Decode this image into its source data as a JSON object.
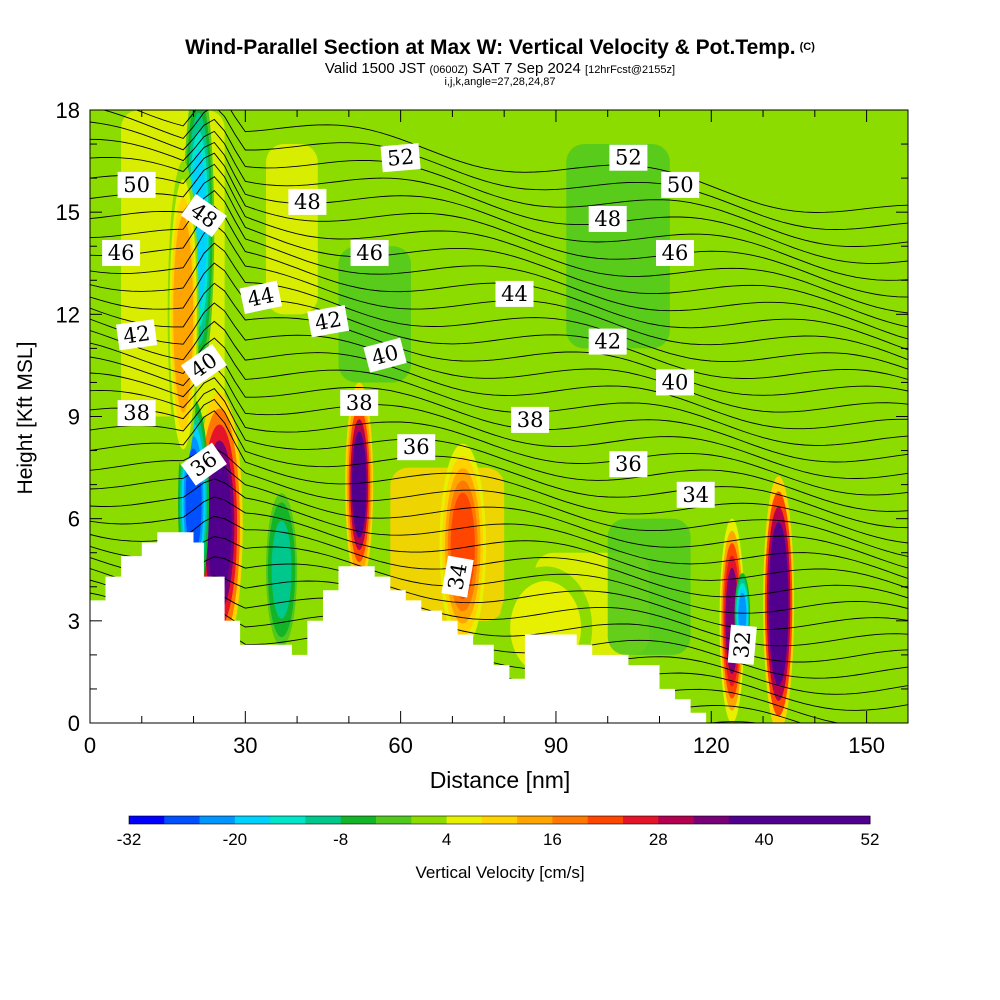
{
  "title": "Wind-Parallel Section at Max W: Vertical Velocity & Pot.Temp.",
  "copyright": "(C)",
  "subtitle": {
    "valid": "Valid 1500 JST",
    "utc": "(0600Z)",
    "date": "SAT 7 Sep 2024",
    "forecast": "[12hrFcst@2155z]"
  },
  "subtitle2": "i,j,k,angle=27,28,24,87",
  "colors": {
    "scale": [
      "#0000ff",
      "#0050ff",
      "#0096ff",
      "#00d2ff",
      "#00e6c8",
      "#00c88c",
      "#14b428",
      "#50c81e",
      "#8cdc00",
      "#e6f000",
      "#ffd200",
      "#ffa500",
      "#ff7800",
      "#ff4600",
      "#e61428",
      "#b40050",
      "#780078",
      "#50008c"
    ],
    "background": "#ffffff",
    "terrain": "#ffffff"
  },
  "chart_data": {
    "type": "heatmap",
    "xlabel": "Distance [nm]",
    "ylabel": "Height [Kft MSL]",
    "xlim": [
      0,
      158
    ],
    "ylim": [
      0,
      18
    ],
    "xticks": [
      "0",
      "30",
      "60",
      "90",
      "120",
      "150"
    ],
    "yticks": [
      "0",
      "3",
      "6",
      "9",
      "12",
      "15",
      "18"
    ],
    "colorbar": {
      "label": "Vertical Velocity [cm/s]",
      "min": -32,
      "max": 52,
      "step": 4,
      "tick_labels": [
        "-32",
        "-20",
        "-8",
        "4",
        "16",
        "28",
        "40",
        "52"
      ]
    },
    "terrain_kft": [
      {
        "x": 0,
        "h": 3.6
      },
      {
        "x": 3,
        "h": 3.6
      },
      {
        "x": 3,
        "h": 4.3
      },
      {
        "x": 6,
        "h": 4.3
      },
      {
        "x": 6,
        "h": 4.9
      },
      {
        "x": 10,
        "h": 4.9
      },
      {
        "x": 10,
        "h": 5.3
      },
      {
        "x": 13,
        "h": 5.3
      },
      {
        "x": 13,
        "h": 5.6
      },
      {
        "x": 20,
        "h": 5.6
      },
      {
        "x": 20,
        "h": 5.3
      },
      {
        "x": 22,
        "h": 5.3
      },
      {
        "x": 22,
        "h": 4.3
      },
      {
        "x": 26,
        "h": 4.3
      },
      {
        "x": 26,
        "h": 3.0
      },
      {
        "x": 29,
        "h": 3.0
      },
      {
        "x": 29,
        "h": 2.3
      },
      {
        "x": 39,
        "h": 2.3
      },
      {
        "x": 39,
        "h": 2.0
      },
      {
        "x": 42,
        "h": 2.0
      },
      {
        "x": 42,
        "h": 3.0
      },
      {
        "x": 45,
        "h": 3.0
      },
      {
        "x": 45,
        "h": 3.9
      },
      {
        "x": 48,
        "h": 3.9
      },
      {
        "x": 48,
        "h": 4.6
      },
      {
        "x": 55,
        "h": 4.6
      },
      {
        "x": 55,
        "h": 4.3
      },
      {
        "x": 58,
        "h": 4.3
      },
      {
        "x": 58,
        "h": 3.9
      },
      {
        "x": 61,
        "h": 3.9
      },
      {
        "x": 61,
        "h": 3.6
      },
      {
        "x": 64,
        "h": 3.6
      },
      {
        "x": 64,
        "h": 3.3
      },
      {
        "x": 68,
        "h": 3.3
      },
      {
        "x": 68,
        "h": 3.0
      },
      {
        "x": 71,
        "h": 3.0
      },
      {
        "x": 71,
        "h": 2.6
      },
      {
        "x": 74,
        "h": 2.6
      },
      {
        "x": 74,
        "h": 2.3
      },
      {
        "x": 78,
        "h": 2.3
      },
      {
        "x": 78,
        "h": 1.7
      },
      {
        "x": 81,
        "h": 1.7
      },
      {
        "x": 81,
        "h": 1.3
      },
      {
        "x": 84,
        "h": 1.3
      },
      {
        "x": 84,
        "h": 2.6
      },
      {
        "x": 94,
        "h": 2.6
      },
      {
        "x": 94,
        "h": 2.3
      },
      {
        "x": 97,
        "h": 2.3
      },
      {
        "x": 97,
        "h": 2.0
      },
      {
        "x": 104,
        "h": 2.0
      },
      {
        "x": 104,
        "h": 1.7
      },
      {
        "x": 110,
        "h": 1.7
      },
      {
        "x": 110,
        "h": 1.0
      },
      {
        "x": 113,
        "h": 1.0
      },
      {
        "x": 113,
        "h": 0.7
      },
      {
        "x": 116,
        "h": 0.7
      },
      {
        "x": 116,
        "h": 0.3
      },
      {
        "x": 119,
        "h": 0.3
      },
      {
        "x": 119,
        "h": 0
      }
    ],
    "cells_cm_s": [
      {
        "x": 25,
        "y": 5.8,
        "w": 3,
        "h": 2.6,
        "v": 42
      },
      {
        "x": 20,
        "y": 6.5,
        "w": 2,
        "h": 2.0,
        "v": -28
      },
      {
        "x": 21,
        "y": 14.5,
        "w": 2,
        "h": 3.0,
        "v": -20
      },
      {
        "x": 18,
        "y": 12.0,
        "w": 2,
        "h": 3.0,
        "v": 16
      },
      {
        "x": 52,
        "y": 7.0,
        "w": 1.8,
        "h": 2.0,
        "v": 40
      },
      {
        "x": 72,
        "y": 5.2,
        "w": 3,
        "h": 2.0,
        "v": 24
      },
      {
        "x": 133,
        "y": 3.5,
        "w": 2,
        "h": 2.5,
        "v": 52
      },
      {
        "x": 124,
        "y": 3.0,
        "w": 1.6,
        "h": 2.0,
        "v": 36
      },
      {
        "x": 126,
        "y": 3.2,
        "w": 1.0,
        "h": 0.8,
        "v": -24
      },
      {
        "x": 37,
        "y": 4.5,
        "w": 2,
        "h": 1.5,
        "v": -12
      },
      {
        "x": 88,
        "y": 2.8,
        "w": 6,
        "h": 1.2,
        "v": 8
      }
    ],
    "theta_contours_C": [
      32,
      34,
      36,
      38,
      40,
      42,
      44,
      46,
      48,
      50,
      52
    ],
    "contour_labels": [
      {
        "text": "50",
        "x": 9,
        "y": 15.8,
        "angle": 0
      },
      {
        "text": "46",
        "x": 6,
        "y": 13.8,
        "angle": 0
      },
      {
        "text": "42",
        "x": 9,
        "y": 11.4,
        "angle": -8
      },
      {
        "text": "38",
        "x": 9,
        "y": 9.1,
        "angle": 0
      },
      {
        "text": "48",
        "x": 22,
        "y": 14.9,
        "angle": 35
      },
      {
        "text": "40",
        "x": 22,
        "y": 10.5,
        "angle": -35
      },
      {
        "text": "36",
        "x": 22,
        "y": 7.6,
        "angle": -35
      },
      {
        "text": "44",
        "x": 33,
        "y": 12.5,
        "angle": -12
      },
      {
        "text": "48",
        "x": 42,
        "y": 15.3,
        "angle": 0
      },
      {
        "text": "52",
        "x": 60,
        "y": 16.6,
        "angle": -5
      },
      {
        "text": "46",
        "x": 54,
        "y": 13.8,
        "angle": 0
      },
      {
        "text": "42",
        "x": 46,
        "y": 11.8,
        "angle": -10
      },
      {
        "text": "40",
        "x": 57,
        "y": 10.8,
        "angle": -15
      },
      {
        "text": "38",
        "x": 52,
        "y": 9.4,
        "angle": 0
      },
      {
        "text": "36",
        "x": 63,
        "y": 8.1,
        "angle": 0
      },
      {
        "text": "34",
        "x": 71,
        "y": 4.3,
        "angle": -80
      },
      {
        "text": "44",
        "x": 82,
        "y": 12.6,
        "angle": 0
      },
      {
        "text": "38",
        "x": 85,
        "y": 8.9,
        "angle": 0
      },
      {
        "text": "52",
        "x": 104,
        "y": 16.6,
        "angle": 0
      },
      {
        "text": "50",
        "x": 114,
        "y": 15.8,
        "angle": 0
      },
      {
        "text": "48",
        "x": 100,
        "y": 14.8,
        "angle": 0
      },
      {
        "text": "46",
        "x": 113,
        "y": 13.8,
        "angle": 0
      },
      {
        "text": "42",
        "x": 100,
        "y": 11.2,
        "angle": 0
      },
      {
        "text": "40",
        "x": 113,
        "y": 10.0,
        "angle": 0
      },
      {
        "text": "36",
        "x": 104,
        "y": 7.6,
        "angle": 0
      },
      {
        "text": "34",
        "x": 117,
        "y": 6.7,
        "angle": 0
      },
      {
        "text": "32",
        "x": 126,
        "y": 2.3,
        "angle": -85
      }
    ]
  }
}
